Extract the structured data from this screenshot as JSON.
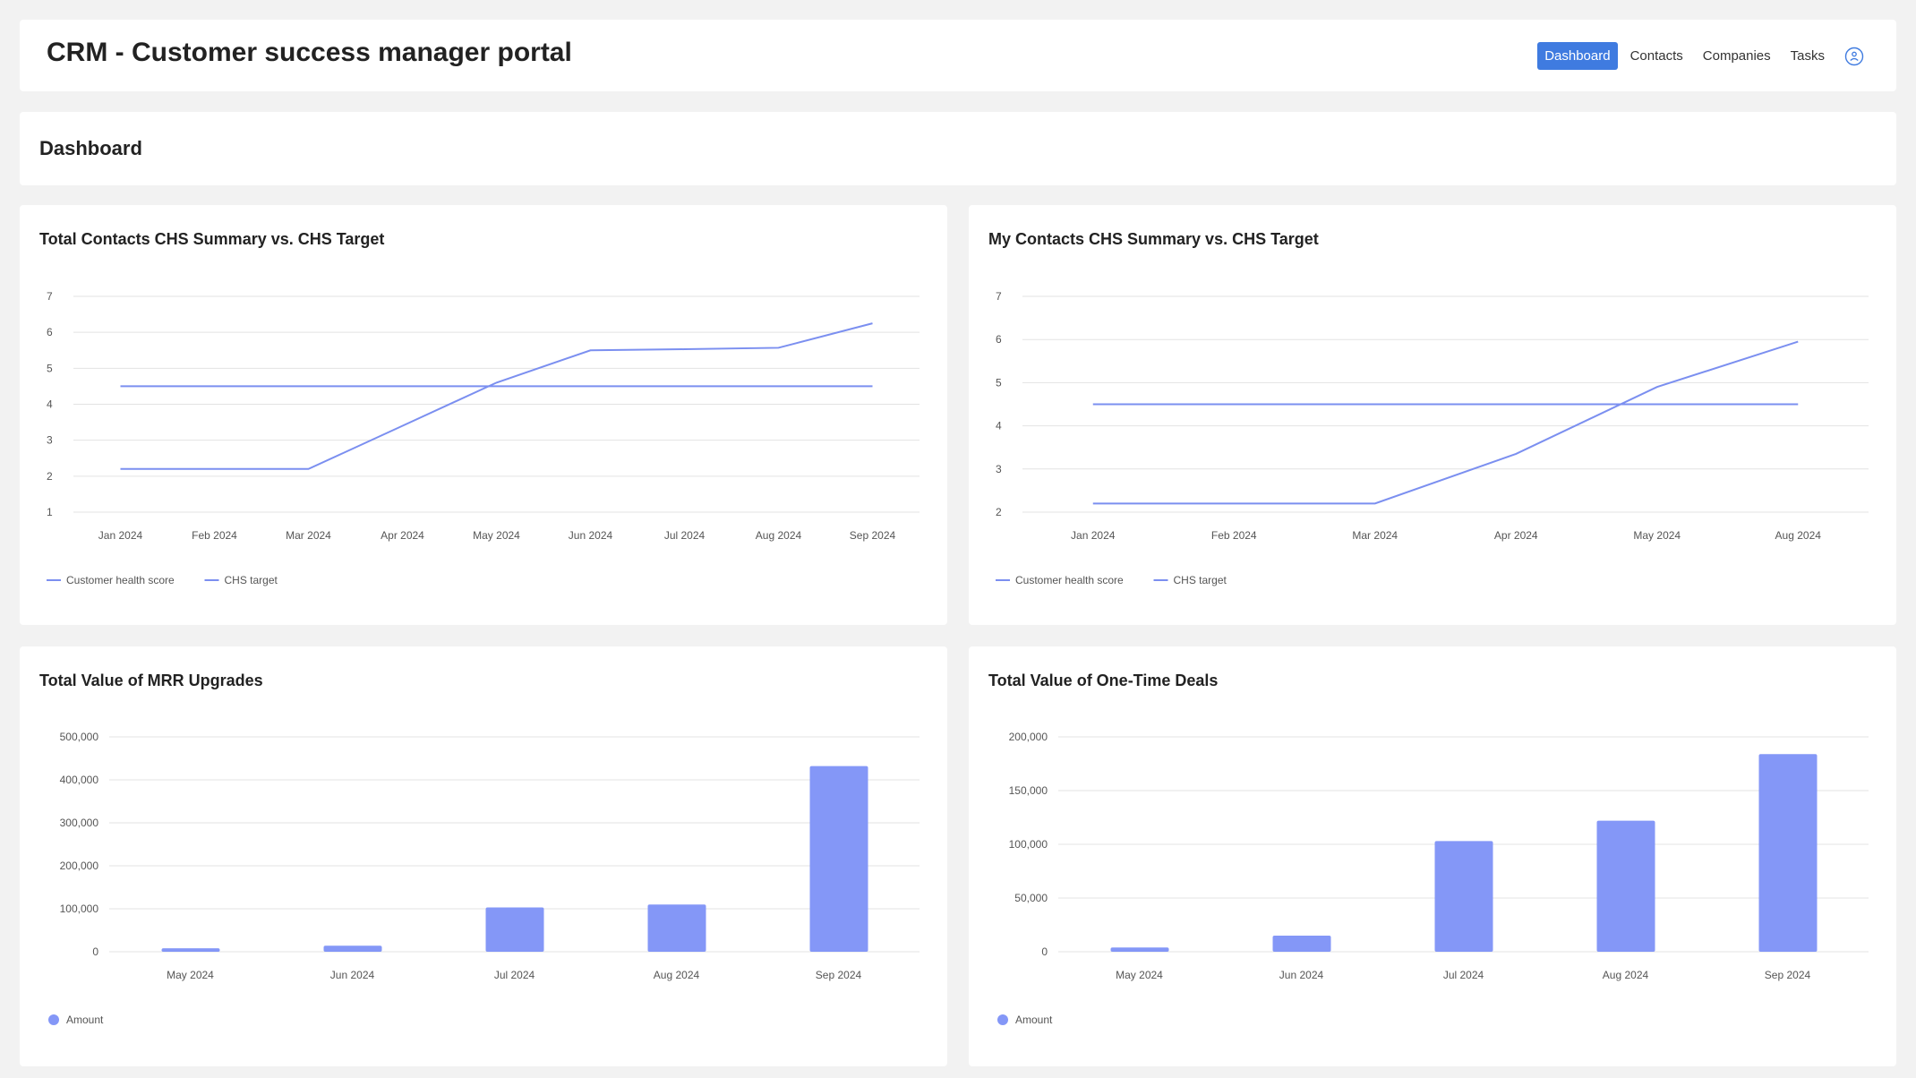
{
  "header": {
    "title": "CRM - Customer success manager portal",
    "nav": [
      "Dashboard",
      "Contacts",
      "Companies",
      "Tasks"
    ],
    "active": "Dashboard",
    "user_icon": "user-circle-icon"
  },
  "page_title": "Dashboard",
  "colors": {
    "accent": "#3f7be0",
    "line": "#7b8ff0",
    "bar": "#8497f7",
    "grid": "#e3e3e3"
  },
  "chart_data": [
    {
      "type": "line",
      "title": "Total Contacts CHS Summary vs. CHS Target",
      "categories": [
        "Jan 2024",
        "Feb 2024",
        "Mar 2024",
        "Apr 2024",
        "May 2024",
        "Jun 2024",
        "Jul 2024",
        "Aug 2024",
        "Sep 2024"
      ],
      "series": [
        {
          "name": "Customer health score",
          "values": [
            2.2,
            2.2,
            2.2,
            3.4,
            4.6,
            5.5,
            5.53,
            5.57,
            6.25
          ]
        },
        {
          "name": "CHS target",
          "values": [
            4.5,
            4.5,
            4.5,
            4.5,
            4.5,
            4.5,
            4.5,
            4.5,
            4.5
          ]
        }
      ],
      "ylim": [
        1,
        7
      ],
      "yticks": [
        1,
        2,
        3,
        4,
        5,
        6,
        7
      ],
      "legend": "bottom-left"
    },
    {
      "type": "line",
      "title": "My Contacts CHS Summary vs. CHS Target",
      "categories": [
        "Jan 2024",
        "Feb 2024",
        "Mar 2024",
        "Apr 2024",
        "May 2024",
        "Aug 2024"
      ],
      "series": [
        {
          "name": "Customer health score",
          "values": [
            2.2,
            2.2,
            2.2,
            3.35,
            4.9,
            5.95
          ]
        },
        {
          "name": "CHS target",
          "values": [
            4.5,
            4.5,
            4.5,
            4.5,
            4.5,
            4.5
          ]
        }
      ],
      "ylim": [
        2,
        7
      ],
      "yticks": [
        2,
        3,
        4,
        5,
        6,
        7
      ],
      "legend": "bottom-left"
    },
    {
      "type": "bar",
      "title": "Total Value of MRR Upgrades",
      "categories": [
        "May 2024",
        "Jun 2024",
        "Jul 2024",
        "Aug 2024",
        "Sep 2024"
      ],
      "series": [
        {
          "name": "Amount",
          "values": [
            8000,
            14000,
            103000,
            110000,
            432000
          ]
        }
      ],
      "ylim": [
        0,
        500000
      ],
      "yticks": [
        0,
        100000,
        200000,
        300000,
        400000,
        500000
      ],
      "legend": "bottom-left"
    },
    {
      "type": "bar",
      "title": "Total Value of One-Time Deals",
      "categories": [
        "May 2024",
        "Jun 2024",
        "Jul 2024",
        "Aug 2024",
        "Sep 2024"
      ],
      "series": [
        {
          "name": "Amount",
          "values": [
            4000,
            15000,
            103000,
            122000,
            184000
          ]
        }
      ],
      "ylim": [
        0,
        200000
      ],
      "yticks": [
        0,
        50000,
        100000,
        150000,
        200000
      ],
      "legend": "bottom-left"
    }
  ]
}
